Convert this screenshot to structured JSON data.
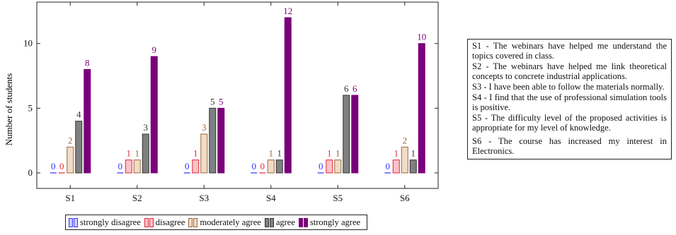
{
  "chart_data": {
    "type": "bar",
    "ylabel": "Number of students",
    "xlabel": "",
    "ylim": [
      -1.2,
      13.2
    ],
    "yticks": [
      0,
      5,
      10
    ],
    "grid": false,
    "legend_position": "bottom",
    "categories": [
      "S1",
      "S2",
      "S3",
      "S4",
      "S5",
      "S6"
    ],
    "series": [
      {
        "name": "strongly disagree",
        "color": "#3333ff",
        "fill": "#ccccff",
        "values": [
          0,
          0,
          0,
          0,
          0,
          0
        ]
      },
      {
        "name": "disagree",
        "color": "#e8253a",
        "fill": "#f8c4c8",
        "values": [
          0,
          1,
          1,
          0,
          1,
          1
        ]
      },
      {
        "name": "moderately agree",
        "color": "#9b6a3b",
        "fill": "#f0dcc7",
        "values": [
          2,
          1,
          3,
          1,
          1,
          2
        ]
      },
      {
        "name": "agree",
        "color": "#333333",
        "fill": "#808080",
        "values": [
          4,
          3,
          5,
          1,
          6,
          1
        ]
      },
      {
        "name": "strongly agree",
        "color": "#7a007a",
        "fill": "#7a007a",
        "values": [
          8,
          9,
          5,
          12,
          6,
          10
        ]
      }
    ]
  },
  "statements": [
    "S1 - The webinars have helped me understand the topics covered in class.",
    "S2 - The webinars have helped me link theoretical concepts to concrete industrial applications.",
    "S3 - I have been able to follow the materials normally.",
    "S4 - I find that the use of professional simulation tools is positive.",
    "S5 - The difficulty level of the proposed activities is appropriate for my level of knowledge.",
    "S6 - The course has increased my interest in Electronics."
  ]
}
